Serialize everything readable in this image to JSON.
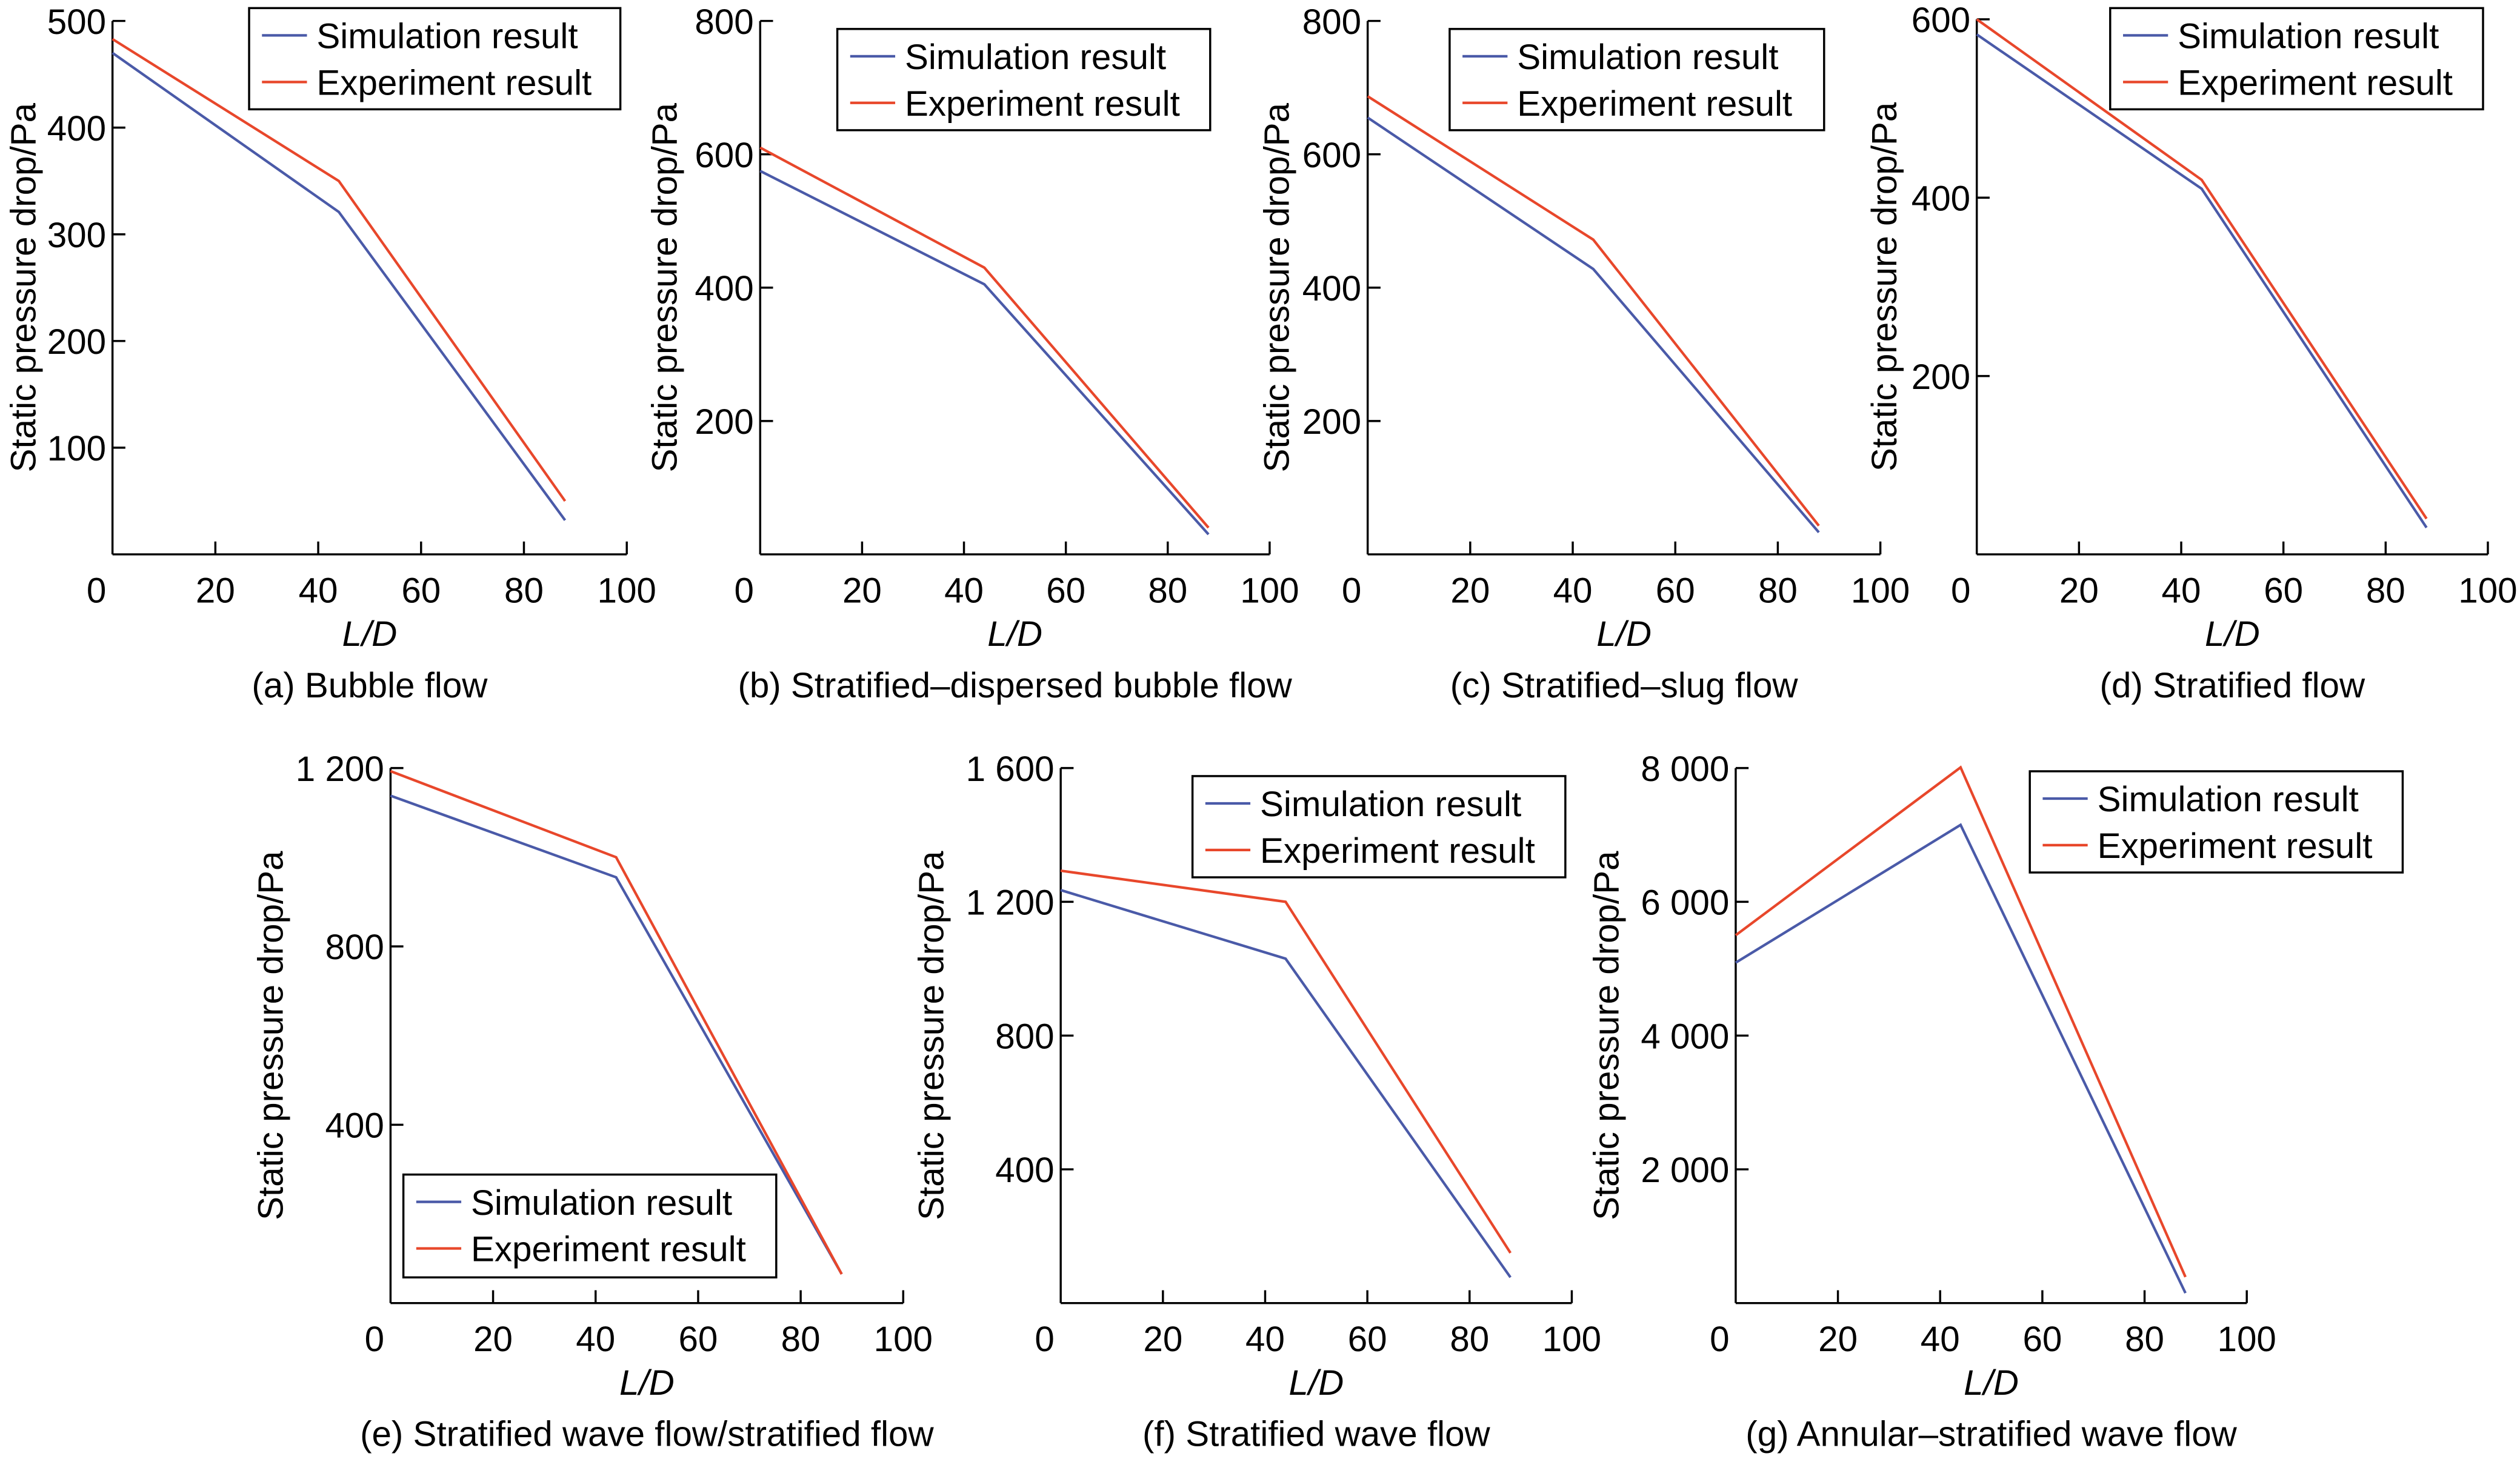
{
  "colors": {
    "simulation": "#4a5aa8",
    "experiment": "#e8472b"
  },
  "chart_data": [
    {
      "type": "line",
      "caption": "(a) Bubble flow",
      "xlabel": "L/D",
      "ylabel": "Static pressure drop/Pa",
      "xlim": [
        0,
        100
      ],
      "ylim": [
        0,
        500
      ],
      "xticks": [
        "0",
        "20",
        "40",
        "60",
        "80",
        "100"
      ],
      "yticks": [
        {
          "v": 100,
          "label": "100"
        },
        {
          "v": 200,
          "label": "200"
        },
        {
          "v": 300,
          "label": "300"
        },
        {
          "v": 400,
          "label": "400"
        },
        {
          "v": 500,
          "label": "500"
        }
      ],
      "legend_position": "top-right",
      "series": [
        {
          "name": "Simulation result",
          "x": [
            0,
            44,
            88
          ],
          "y": [
            470,
            321,
            32
          ]
        },
        {
          "name": "Experiment result",
          "x": [
            0,
            44,
            88
          ],
          "y": [
            483,
            350,
            50
          ]
        }
      ]
    },
    {
      "type": "line",
      "caption": "(b) Stratified–dispersed bubble flow",
      "xlabel": "L/D",
      "ylabel": "Static pressure drop/Pa",
      "xlim": [
        0,
        100
      ],
      "ylim": [
        0,
        800
      ],
      "xticks": [
        "0",
        "20",
        "40",
        "60",
        "80",
        "100"
      ],
      "yticks": [
        {
          "v": 200,
          "label": "200"
        },
        {
          "v": 400,
          "label": "400"
        },
        {
          "v": 600,
          "label": "600"
        },
        {
          "v": 800,
          "label": "800"
        }
      ],
      "legend_position": "top-right",
      "series": [
        {
          "name": "Simulation result",
          "x": [
            0,
            44,
            88
          ],
          "y": [
            575,
            405,
            30
          ]
        },
        {
          "name": "Experiment result",
          "x": [
            0,
            44,
            88
          ],
          "y": [
            610,
            430,
            40
          ]
        }
      ]
    },
    {
      "type": "line",
      "caption": "(c) Stratified–slug flow",
      "xlabel": "L/D",
      "ylabel": "Static pressure drop/Pa",
      "xlim": [
        0,
        100
      ],
      "ylim": [
        0,
        800
      ],
      "xticks": [
        "0",
        "20",
        "40",
        "60",
        "80",
        "100"
      ],
      "yticks": [
        {
          "v": 200,
          "label": "200"
        },
        {
          "v": 400,
          "label": "400"
        },
        {
          "v": 600,
          "label": "600"
        },
        {
          "v": 800,
          "label": "800"
        }
      ],
      "legend_position": "top-right",
      "series": [
        {
          "name": "Simulation result",
          "x": [
            0,
            44,
            88
          ],
          "y": [
            655,
            428,
            33
          ]
        },
        {
          "name": "Experiment result",
          "x": [
            0,
            44,
            88
          ],
          "y": [
            687,
            472,
            43
          ]
        }
      ]
    },
    {
      "type": "line",
      "caption": "(d) Stratified flow",
      "xlabel": "L/D",
      "ylabel": "Static pressure drop/Pa",
      "xlim": [
        0,
        100
      ],
      "ylim": [
        0,
        600
      ],
      "xticks": [
        "0",
        "20",
        "40",
        "60",
        "80",
        "100"
      ],
      "yticks": [
        {
          "v": 200,
          "label": "200"
        },
        {
          "v": 400,
          "label": "400"
        },
        {
          "v": 600,
          "label": "600"
        }
      ],
      "legend_position": "top-right",
      "series": [
        {
          "name": "Simulation result",
          "x": [
            0,
            44,
            88
          ],
          "y": [
            583,
            410,
            30
          ]
        },
        {
          "name": "Experiment result",
          "x": [
            0,
            44,
            88
          ],
          "y": [
            600,
            420,
            40
          ]
        }
      ]
    },
    {
      "type": "line",
      "caption": "(e) Stratified wave flow/stratified flow",
      "xlabel": "L/D",
      "ylabel": "Static pressure drop/Pa",
      "xlim": [
        0,
        100
      ],
      "ylim": [
        0,
        1200
      ],
      "xticks": [
        "0",
        "20",
        "40",
        "60",
        "80",
        "100"
      ],
      "yticks": [
        {
          "v": 400,
          "label": "400"
        },
        {
          "v": 800,
          "label": "800"
        },
        {
          "v": 1200,
          "label": "1 200"
        }
      ],
      "legend_position": "bottom-left",
      "series": [
        {
          "name": "Simulation result",
          "x": [
            0,
            44,
            88
          ],
          "y": [
            1138,
            955,
            65
          ]
        },
        {
          "name": "Experiment result",
          "x": [
            0,
            44,
            88
          ],
          "y": [
            1193,
            1000,
            65
          ]
        }
      ]
    },
    {
      "type": "line",
      "caption": "(f) Stratified wave flow",
      "xlabel": "L/D",
      "ylabel": "Static pressure drop/Pa",
      "xlim": [
        0,
        100
      ],
      "ylim": [
        0,
        1600
      ],
      "xticks": [
        "0",
        "20",
        "40",
        "60",
        "80",
        "100"
      ],
      "yticks": [
        {
          "v": 400,
          "label": "400"
        },
        {
          "v": 800,
          "label": "800"
        },
        {
          "v": 1200,
          "label": "1 200"
        },
        {
          "v": 1600,
          "label": "1 600"
        }
      ],
      "legend_position": "top-right",
      "series": [
        {
          "name": "Simulation result",
          "x": [
            0,
            44,
            88
          ],
          "y": [
            1235,
            1030,
            77
          ]
        },
        {
          "name": "Experiment result",
          "x": [
            0,
            44,
            88
          ],
          "y": [
            1293,
            1200,
            150
          ]
        }
      ]
    },
    {
      "type": "line",
      "caption": "(g) Annular–stratified wave flow",
      "xlabel": "L/D",
      "ylabel": "Static pressure drop/Pa",
      "xlim": [
        0,
        100
      ],
      "ylim": [
        0,
        8000
      ],
      "xticks": [
        "0",
        "20",
        "40",
        "60",
        "80",
        "100"
      ],
      "yticks": [
        {
          "v": 2000,
          "label": "2 000"
        },
        {
          "v": 4000,
          "label": "4 000"
        },
        {
          "v": 6000,
          "label": "6 000"
        },
        {
          "v": 8000,
          "label": "8 000"
        }
      ],
      "legend_position": "top-right",
      "series": [
        {
          "name": "Simulation result",
          "x": [
            0,
            44,
            88
          ],
          "y": [
            5090,
            7150,
            150
          ]
        },
        {
          "name": "Experiment result",
          "x": [
            0,
            44,
            88
          ],
          "y": [
            5500,
            8010,
            390
          ]
        }
      ]
    }
  ]
}
